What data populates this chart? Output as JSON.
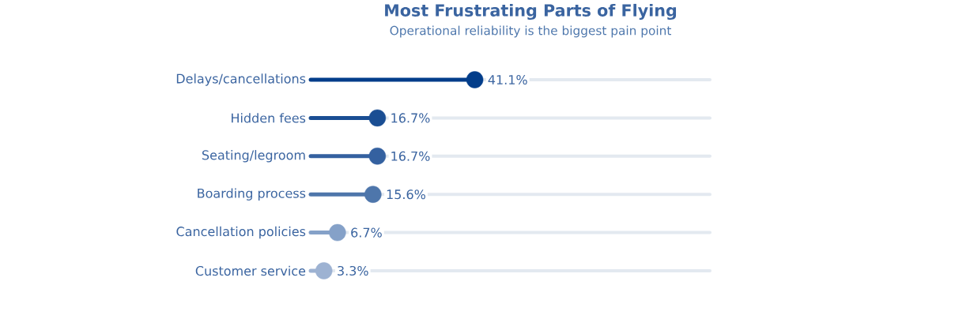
{
  "chart_data": {
    "type": "lollipop",
    "orientation": "horizontal",
    "title": "Most Frustrating Parts of Flying",
    "subtitle": "Operational reliability is the biggest pain point",
    "categories": [
      "Delays/cancellations",
      "Hidden fees",
      "Seating/legroom",
      "Boarding process",
      "Cancellation policies",
      "Customer service"
    ],
    "values": [
      41.1,
      16.7,
      16.7,
      15.6,
      6.7,
      3.3
    ],
    "value_labels": [
      "41.1%",
      "16.7%",
      "16.7%",
      "15.6%",
      "6.7%",
      "3.3%"
    ],
    "colors": [
      "#023d8a",
      "#1a4e93",
      "#3461a0",
      "#4e76ab",
      "#85a1c8",
      "#9db2d2"
    ],
    "xlim": [
      0,
      100
    ],
    "grid": "y",
    "tick_labels": "y"
  }
}
